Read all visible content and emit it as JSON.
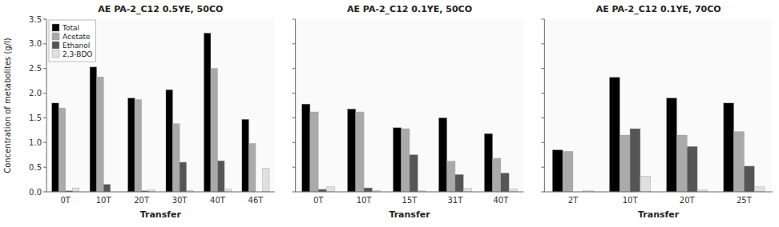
{
  "chart_data": [
    {
      "type": "bar",
      "title": "AE PA-2_C12 0.5YE, 50CO",
      "xlabel": "Transfer",
      "ylabel": "Concentration of metabolites (g/l)",
      "categories": [
        "0T",
        "10T",
        "20T",
        "30T",
        "40T",
        "46T"
      ],
      "series": [
        {
          "name": "Total",
          "color": "#000000",
          "values": [
            1.8,
            2.53,
            1.9,
            2.07,
            3.22,
            1.47
          ]
        },
        {
          "name": "Acetate",
          "color": "#aaaaaa",
          "values": [
            1.7,
            2.33,
            1.87,
            1.38,
            2.5,
            0.98
          ]
        },
        {
          "name": "Ethanol",
          "color": "#555555",
          "values": [
            0.02,
            0.15,
            0.02,
            0.6,
            0.63,
            0.0
          ]
        },
        {
          "name": "2,3-BDO",
          "color": "#e0e0e0",
          "values": [
            0.08,
            0.0,
            0.04,
            0.03,
            0.06,
            0.48
          ]
        }
      ],
      "ylim": [
        0,
        3.5
      ],
      "yticks": [
        {
          "value": 0,
          "label": "0.0"
        },
        0.5,
        {
          "value": 1,
          "label": "1.0"
        },
        1.5,
        {
          "value": 2,
          "label": "2.0"
        },
        2.5,
        {
          "value": 3,
          "label": "3.0"
        },
        3.5
      ],
      "legend": "upper left"
    },
    {
      "type": "bar",
      "title": "AE PA-2_C12 0.1YE, 50CO",
      "xlabel": "Transfer",
      "categories": [
        "0T",
        "10T",
        "15T",
        "31T",
        "40T"
      ],
      "series": [
        {
          "color": "#000000",
          "values": [
            1.78,
            1.68,
            1.3,
            1.5,
            1.18
          ]
        },
        {
          "color": "#aaaaaa",
          "values": [
            1.62,
            1.62,
            1.28,
            0.62,
            0.68
          ]
        },
        {
          "color": "#555555",
          "values": [
            0.05,
            0.08,
            0.75,
            0.35,
            0.38
          ]
        },
        {
          "color": "#e0e0e0",
          "values": [
            0.1,
            0.03,
            0.02,
            0.07,
            0.06
          ]
        }
      ],
      "ylim": [
        0,
        3.5
      ],
      "yticks": [
        0,
        0.5,
        1,
        1.5,
        2,
        2.5,
        3,
        3.5
      ],
      "tick_labels": "x"
    },
    {
      "type": "bar",
      "title": "AE PA-2_C12 0.1YE, 70CO",
      "xlabel": "Transfer",
      "categories": [
        "2T",
        "10T",
        "20T",
        "25T"
      ],
      "series": [
        {
          "color": "#000000",
          "values": [
            0.85,
            2.32,
            1.9,
            1.8
          ]
        },
        {
          "color": "#aaaaaa",
          "values": [
            0.82,
            1.15,
            1.15,
            1.22
          ]
        },
        {
          "color": "#555555",
          "values": [
            0.0,
            1.28,
            0.92,
            0.52
          ]
        },
        {
          "color": "#e0e0e0",
          "values": [
            0.02,
            0.32,
            0.04,
            0.1
          ]
        }
      ],
      "ylim": [
        0,
        3.5
      ],
      "yticks": [
        0,
        0.5,
        1,
        1.5,
        2,
        2.5,
        3,
        3.5
      ],
      "tick_labels": "x"
    }
  ]
}
